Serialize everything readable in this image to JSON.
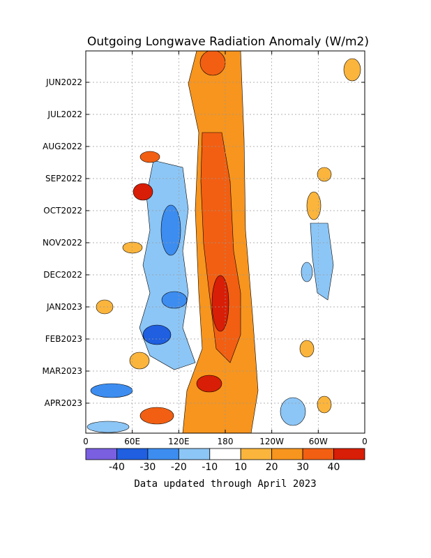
{
  "chart_data": {
    "type": "heatmap",
    "title": "Outgoing Longwave Radiation Anomaly (W/m2)",
    "xlabel": "",
    "ylabel": "",
    "x_tick_labels": [
      "0",
      "60E",
      "120E",
      "180",
      "120W",
      "60W",
      "0"
    ],
    "x_tick_longitudes": [
      0,
      60,
      120,
      180,
      240,
      300,
      360
    ],
    "y_tick_labels": [
      "JUN2022",
      "JUL2022",
      "AUG2022",
      "SEP2022",
      "OCT2022",
      "NOV2022",
      "DEC2022",
      "JAN2023",
      "FEB2023",
      "MAR2023",
      "APR2023"
    ],
    "x_range_deg": [
      0,
      360
    ],
    "time_range": [
      "2022-05",
      "2023-04"
    ],
    "grid": true,
    "colorbar": {
      "position": "bottom",
      "levels": [
        -50,
        -40,
        -30,
        -20,
        -10,
        10,
        20,
        30,
        40,
        50
      ],
      "tick_labels": [
        "-40",
        "-30",
        "-20",
        "-10",
        "10",
        "20",
        "30",
        "40"
      ],
      "colors": [
        "#7a5fe0",
        "#1f5fe0",
        "#3d8df0",
        "#8cc6f6",
        "#ffffff",
        "#fbb53c",
        "#f7951e",
        "#f25f12",
        "#d81e06"
      ]
    },
    "features": [
      {
        "label": "positive anomaly band near dateline",
        "lon_start": 150,
        "lon_end": 200,
        "value_peak": 40
      },
      {
        "label": "negative anomaly region eastern Indian Ocean / Maritime Continent",
        "lon_start": 70,
        "lon_end": 160,
        "value_peak": -35
      },
      {
        "label": "negative anomaly patch eastern Pacific",
        "lon_start": 290,
        "lon_end": 320,
        "value_peak": -15
      }
    ]
  },
  "footer_note": "Data updated through April 2023"
}
